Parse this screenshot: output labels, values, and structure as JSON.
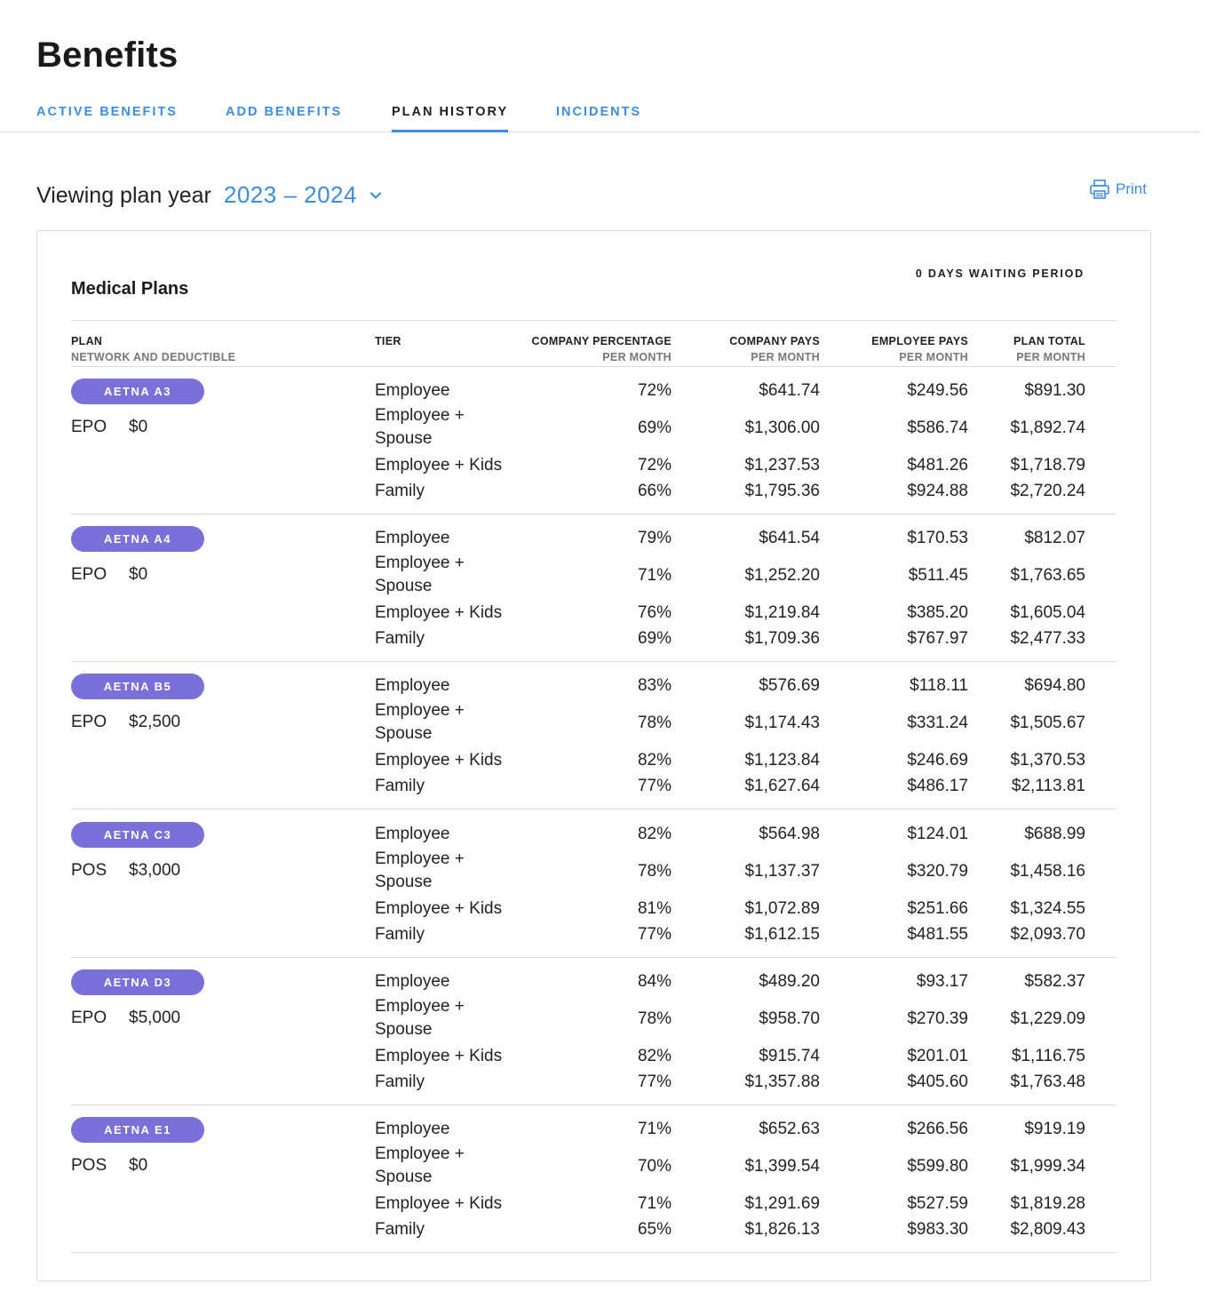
{
  "header": {
    "title": "Benefits"
  },
  "tabs": [
    {
      "label": "ACTIVE BENEFITS",
      "active": false
    },
    {
      "label": "ADD BENEFITS",
      "active": false
    },
    {
      "label": "PLAN HISTORY",
      "active": true
    },
    {
      "label": "INCIDENTS",
      "active": false
    }
  ],
  "viewing": {
    "label": "Viewing plan year",
    "year": "2023 – 2024"
  },
  "print_label": "Print",
  "card": {
    "title": "Medical Plans",
    "waiting_period": "0 DAYS WAITING PERIOD",
    "columns": {
      "plan": "PLAN",
      "plan_sub": "NETWORK AND DEDUCTIBLE",
      "tier": "TIER",
      "company_pct": "COMPANY PERCENTAGE",
      "company_pct_sub": "PER MONTH",
      "company_pays": "COMPANY PAYS",
      "company_pays_sub": "PER MONTH",
      "employee_pays": "EMPLOYEE PAYS",
      "employee_pays_sub": "PER MONTH",
      "plan_total": "PLAN TOTAL",
      "plan_total_sub": "PER MONTH"
    }
  },
  "plans": [
    {
      "name": "AETNA A3",
      "network": "EPO",
      "deductible": "$0",
      "rows": [
        {
          "tier": "Employee",
          "pct": "72%",
          "company": "$641.74",
          "employee": "$249.56",
          "total": "$891.30"
        },
        {
          "tier": "Employee + Spouse",
          "pct": "69%",
          "company": "$1,306.00",
          "employee": "$586.74",
          "total": "$1,892.74"
        },
        {
          "tier": "Employee + Kids",
          "pct": "72%",
          "company": "$1,237.53",
          "employee": "$481.26",
          "total": "$1,718.79"
        },
        {
          "tier": "Family",
          "pct": "66%",
          "company": "$1,795.36",
          "employee": "$924.88",
          "total": "$2,720.24"
        }
      ]
    },
    {
      "name": "AETNA A4",
      "network": "EPO",
      "deductible": "$0",
      "rows": [
        {
          "tier": "Employee",
          "pct": "79%",
          "company": "$641.54",
          "employee": "$170.53",
          "total": "$812.07"
        },
        {
          "tier": "Employee + Spouse",
          "pct": "71%",
          "company": "$1,252.20",
          "employee": "$511.45",
          "total": "$1,763.65"
        },
        {
          "tier": "Employee + Kids",
          "pct": "76%",
          "company": "$1,219.84",
          "employee": "$385.20",
          "total": "$1,605.04"
        },
        {
          "tier": "Family",
          "pct": "69%",
          "company": "$1,709.36",
          "employee": "$767.97",
          "total": "$2,477.33"
        }
      ]
    },
    {
      "name": "AETNA B5",
      "network": "EPO",
      "deductible": "$2,500",
      "rows": [
        {
          "tier": "Employee",
          "pct": "83%",
          "company": "$576.69",
          "employee": "$118.11",
          "total": "$694.80"
        },
        {
          "tier": "Employee + Spouse",
          "pct": "78%",
          "company": "$1,174.43",
          "employee": "$331.24",
          "total": "$1,505.67"
        },
        {
          "tier": "Employee + Kids",
          "pct": "82%",
          "company": "$1,123.84",
          "employee": "$246.69",
          "total": "$1,370.53"
        },
        {
          "tier": "Family",
          "pct": "77%",
          "company": "$1,627.64",
          "employee": "$486.17",
          "total": "$2,113.81"
        }
      ]
    },
    {
      "name": "AETNA C3",
      "network": "POS",
      "deductible": "$3,000",
      "rows": [
        {
          "tier": "Employee",
          "pct": "82%",
          "company": "$564.98",
          "employee": "$124.01",
          "total": "$688.99"
        },
        {
          "tier": "Employee + Spouse",
          "pct": "78%",
          "company": "$1,137.37",
          "employee": "$320.79",
          "total": "$1,458.16"
        },
        {
          "tier": "Employee + Kids",
          "pct": "81%",
          "company": "$1,072.89",
          "employee": "$251.66",
          "total": "$1,324.55"
        },
        {
          "tier": "Family",
          "pct": "77%",
          "company": "$1,612.15",
          "employee": "$481.55",
          "total": "$2,093.70"
        }
      ]
    },
    {
      "name": "AETNA D3",
      "network": "EPO",
      "deductible": "$5,000",
      "rows": [
        {
          "tier": "Employee",
          "pct": "84%",
          "company": "$489.20",
          "employee": "$93.17",
          "total": "$582.37"
        },
        {
          "tier": "Employee + Spouse",
          "pct": "78%",
          "company": "$958.70",
          "employee": "$270.39",
          "total": "$1,229.09"
        },
        {
          "tier": "Employee + Kids",
          "pct": "82%",
          "company": "$915.74",
          "employee": "$201.01",
          "total": "$1,116.75"
        },
        {
          "tier": "Family",
          "pct": "77%",
          "company": "$1,357.88",
          "employee": "$405.60",
          "total": "$1,763.48"
        }
      ]
    },
    {
      "name": "AETNA E1",
      "network": "POS",
      "deductible": "$0",
      "rows": [
        {
          "tier": "Employee",
          "pct": "71%",
          "company": "$652.63",
          "employee": "$266.56",
          "total": "$919.19"
        },
        {
          "tier": "Employee + Spouse",
          "pct": "70%",
          "company": "$1,399.54",
          "employee": "$599.80",
          "total": "$1,999.34"
        },
        {
          "tier": "Employee + Kids",
          "pct": "71%",
          "company": "$1,291.69",
          "employee": "$527.59",
          "total": "$1,819.28"
        },
        {
          "tier": "Family",
          "pct": "65%",
          "company": "$1,826.13",
          "employee": "$983.30",
          "total": "$2,809.43"
        }
      ]
    }
  ]
}
